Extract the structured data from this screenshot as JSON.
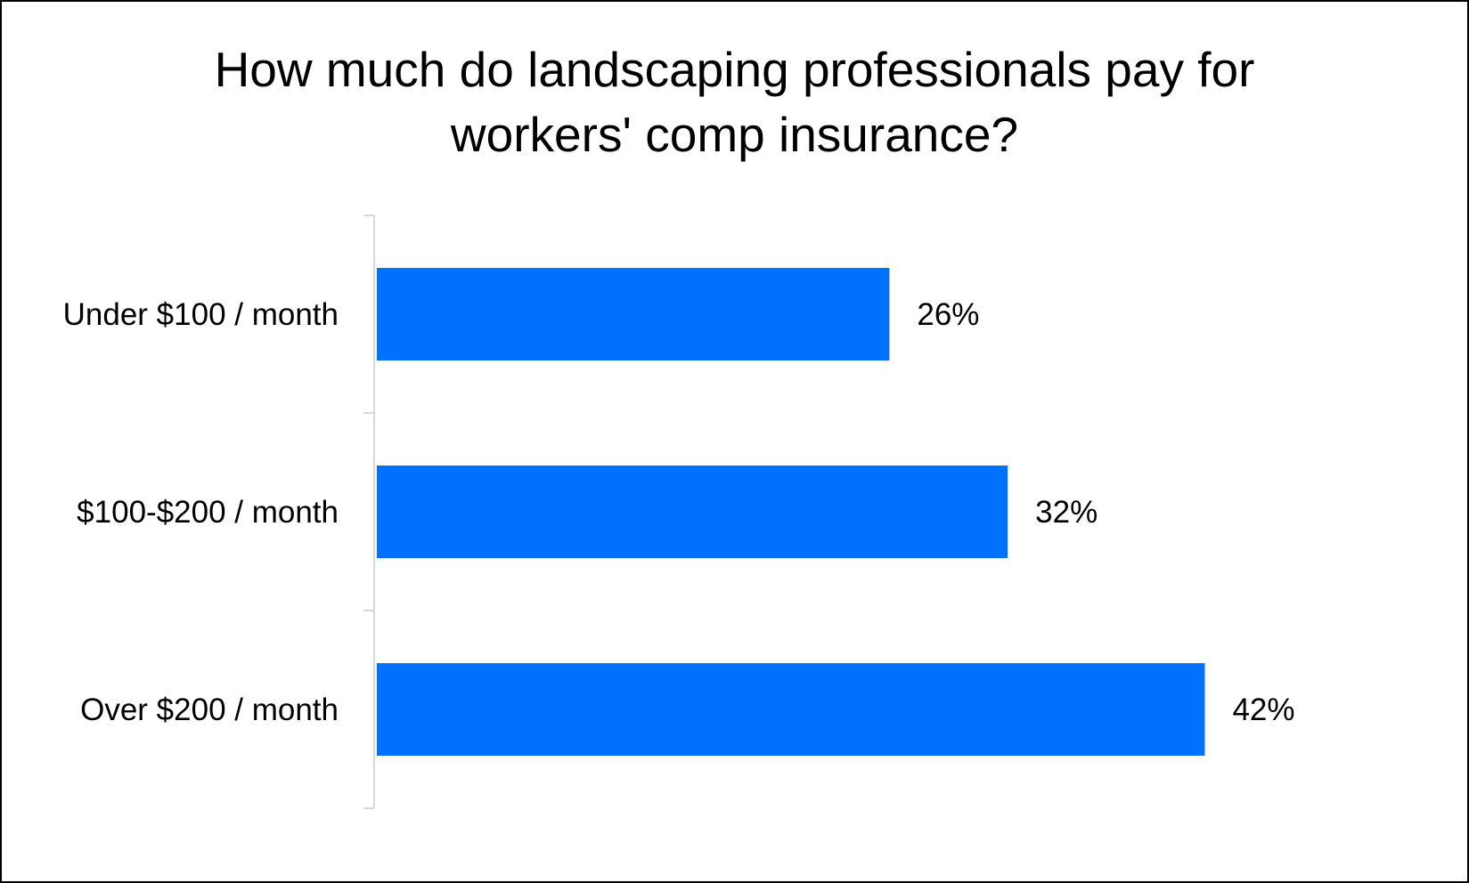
{
  "chart_data": {
    "type": "bar",
    "orientation": "horizontal",
    "title_lines": [
      "How much do landscaping professionals pay for",
      "workers' comp insurance?"
    ],
    "categories": [
      "Under $100 / month",
      "$100-$200 / month",
      "Over $200 / month"
    ],
    "values": [
      26,
      32,
      42
    ],
    "value_labels": [
      "26%",
      "32%",
      "42%"
    ],
    "xlim": [
      0,
      50
    ],
    "grid": false,
    "legend": "none",
    "bar_color": "#0070FF",
    "axis_color": "#D9D9D9"
  }
}
